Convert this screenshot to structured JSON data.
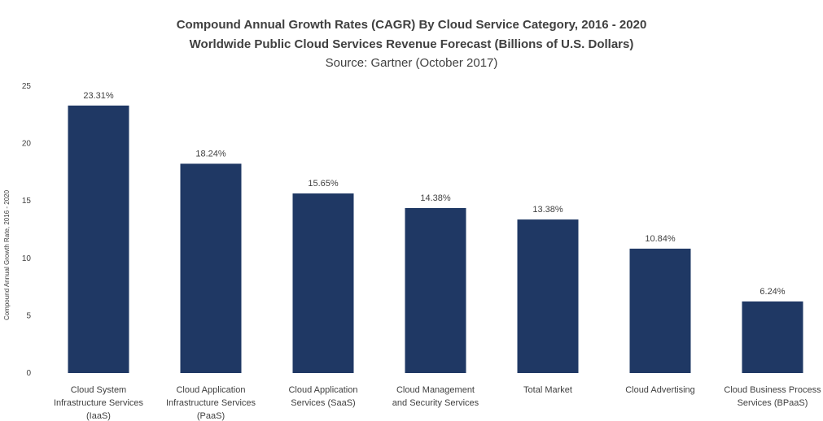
{
  "chart_data": {
    "type": "bar",
    "title": "Compound Annual Growth Rates (CAGR) By Cloud Service Category, 2016 - 2020",
    "subtitle": "Worldwide Public Cloud Services Revenue Forecast (Billions of U.S. Dollars)",
    "source": "Source: Gartner (October 2017)",
    "ylabel": "Compound Annual Growth Rate, 2016 - 2020",
    "xlabel": "",
    "ylim": [
      0,
      25
    ],
    "yticks": [
      "0",
      "5",
      "10",
      "15",
      "20",
      "25"
    ],
    "grid": false,
    "bar_color": "#1f3864",
    "categories": [
      [
        "Cloud System",
        "Infrastructure Services",
        "(IaaS)"
      ],
      [
        "Cloud Application",
        "Infrastructure Services",
        "(PaaS)"
      ],
      [
        "Cloud Application",
        "Services (SaaS)"
      ],
      [
        "Cloud Management",
        "and Security Services"
      ],
      [
        "Total Market"
      ],
      [
        "Cloud Advertising"
      ],
      [
        "Cloud Business Process",
        "Services (BPaaS)"
      ]
    ],
    "values": [
      23.31,
      18.24,
      15.65,
      14.38,
      13.38,
      10.84,
      6.24
    ],
    "value_labels": [
      "23.31%",
      "18.24%",
      "15.65%",
      "14.38%",
      "13.38%",
      "10.84%",
      "6.24%"
    ]
  }
}
